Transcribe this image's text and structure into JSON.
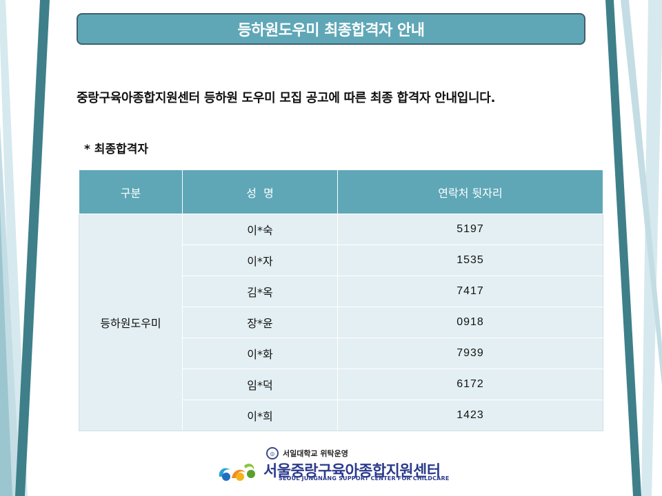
{
  "title": "등하원도우미 최종합격자 안내",
  "intro": "중랑구육아종합지원센터 등하원 도우미 모집 공고에 따른 최종 합격자 안내입니다.",
  "section_label": "* 최종합격자",
  "table": {
    "headers": [
      "구분",
      "성  명",
      "연락처 뒷자리"
    ],
    "category": "등하원도우미",
    "rows": [
      {
        "name": "이*숙",
        "phone": "5197"
      },
      {
        "name": "이*자",
        "phone": "1535"
      },
      {
        "name": "김*옥",
        "phone": "7417"
      },
      {
        "name": "장*윤",
        "phone": "0918"
      },
      {
        "name": "이*화",
        "phone": "7939"
      },
      {
        "name": "임*덕",
        "phone": "6172"
      },
      {
        "name": "이*희",
        "phone": "1423"
      }
    ]
  },
  "footer": {
    "university_text": "서일대학교 위탁운영",
    "center_name": "서울중랑구육아종합지원센터",
    "center_name_en": "SEOUL JUNGNANG SUPPORT CENTER FOR CHILDCARE"
  },
  "colors": {
    "header_teal": "#5fa7b7",
    "cell_bg": "#e3eff2",
    "stripe_dark": "#3e7f8a",
    "stripe_light": "#d6e9ee",
    "logo_navy": "#2b3a8c"
  }
}
